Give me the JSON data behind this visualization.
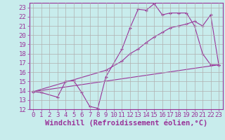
{
  "xlabel": "Windchill (Refroidissement éolien,°C)",
  "background_color": "#c8ecec",
  "line_color": "#993399",
  "xlim": [
    -0.5,
    23.5
  ],
  "ylim": [
    12,
    23.5
  ],
  "xticks": [
    0,
    1,
    2,
    3,
    4,
    5,
    6,
    7,
    8,
    9,
    10,
    11,
    12,
    13,
    14,
    15,
    16,
    17,
    18,
    19,
    20,
    21,
    22,
    23
  ],
  "yticks": [
    12,
    13,
    14,
    15,
    16,
    17,
    18,
    19,
    20,
    21,
    22,
    23
  ],
  "lines": [
    {
      "x": [
        0,
        1,
        3,
        4,
        5,
        6,
        7,
        8,
        9,
        11,
        12,
        13,
        14,
        15,
        16,
        17,
        18,
        19,
        20,
        21,
        22,
        23
      ],
      "y": [
        13.9,
        13.8,
        13.3,
        15.0,
        15.1,
        13.8,
        12.3,
        12.1,
        15.5,
        18.5,
        20.8,
        22.8,
        22.7,
        23.4,
        22.2,
        22.4,
        22.4,
        22.4,
        21.0,
        18.0,
        16.8,
        16.8
      ]
    },
    {
      "x": [
        0,
        9,
        11,
        12,
        13,
        14,
        15,
        16,
        17,
        18,
        19,
        20,
        21,
        22,
        23
      ],
      "y": [
        13.9,
        16.2,
        17.2,
        18.0,
        18.5,
        19.2,
        19.8,
        20.3,
        20.8,
        21.0,
        21.2,
        21.5,
        21.0,
        22.2,
        16.8
      ]
    },
    {
      "x": [
        0,
        23
      ],
      "y": [
        13.9,
        16.8
      ]
    }
  ],
  "grid_color": "#b0b0b0",
  "tick_fontsize": 6.5,
  "label_fontsize": 7.5
}
